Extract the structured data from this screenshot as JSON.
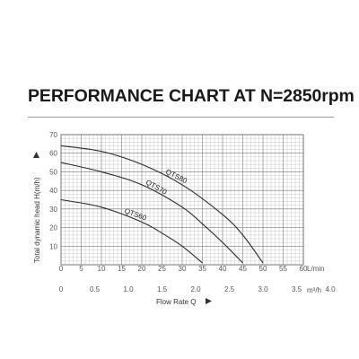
{
  "title": "PERFORMANCE CHART AT N=2850rpm",
  "chart_data": {
    "type": "line",
    "title": "PERFORMANCE CHART AT N=2850rpm",
    "ylabel": "Total dynamic head H(m/h)",
    "xlabel": "Flow Rate Q",
    "x_unit_primary": "L/min",
    "x_unit_secondary": "m³/h",
    "xlim": [
      0,
      60
    ],
    "ylim": [
      0,
      70
    ],
    "x_ticks_primary": [
      "0",
      "5",
      "10",
      "15",
      "20",
      "25",
      "30",
      "35",
      "40",
      "45",
      "50",
      "55",
      "60"
    ],
    "x_ticks_secondary": [
      "0",
      "0.5",
      "1.0",
      "1.5",
      "2.0",
      "2.5",
      "3.0",
      "3.5",
      "4.0"
    ],
    "y_ticks": [
      "10",
      "20",
      "30",
      "40",
      "50",
      "60",
      "70"
    ],
    "grid": true,
    "series": [
      {
        "name": "QTS80",
        "x": [
          0,
          10,
          20,
          30,
          40,
          45,
          50
        ],
        "y": [
          64,
          61,
          54,
          43,
          27,
          16,
          1
        ]
      },
      {
        "name": "QTS70",
        "x": [
          0,
          10,
          20,
          30,
          35,
          40,
          45
        ],
        "y": [
          55,
          50,
          43,
          31,
          22,
          12,
          1
        ]
      },
      {
        "name": "QTS60",
        "x": [
          0,
          10,
          20,
          25,
          30,
          35
        ],
        "y": [
          35,
          31,
          23,
          17,
          10,
          1
        ]
      }
    ]
  }
}
